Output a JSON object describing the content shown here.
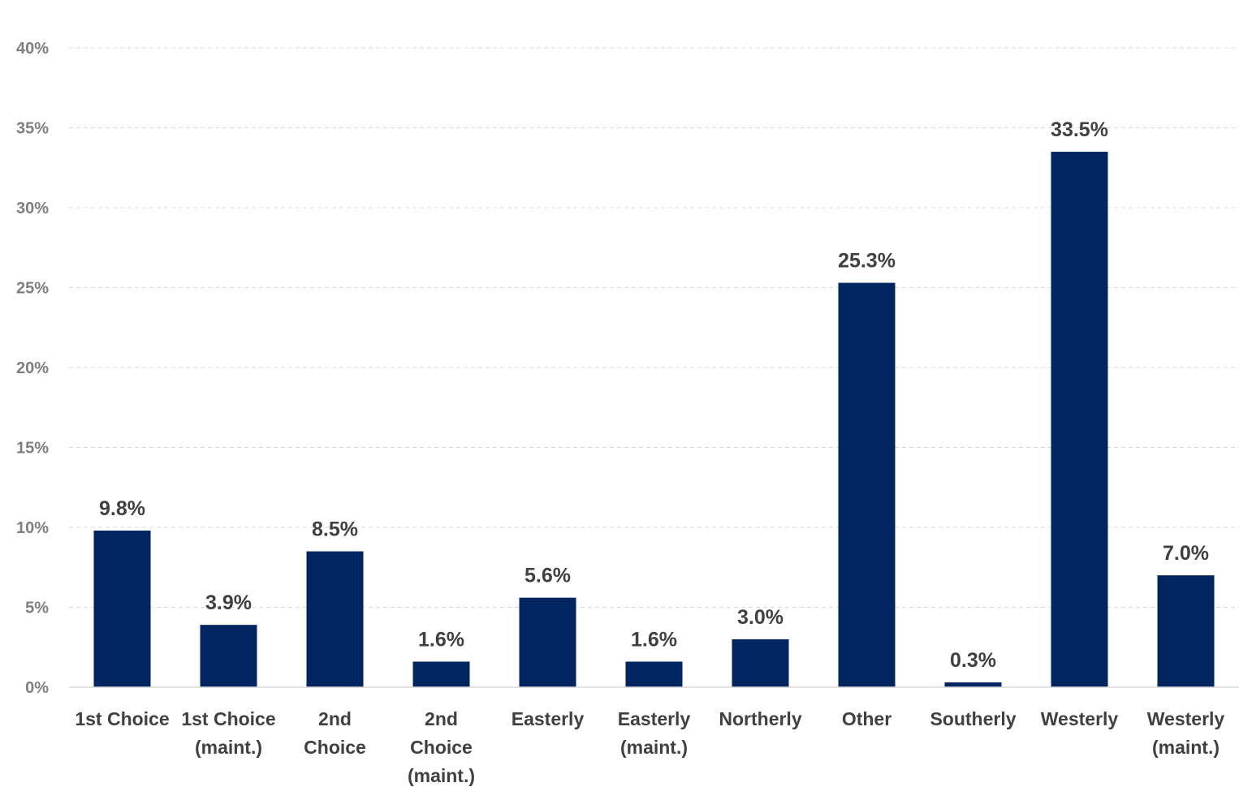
{
  "chart_data": {
    "type": "bar",
    "categories": [
      [
        "1st Choice"
      ],
      [
        "1st Choice",
        "(maint.)"
      ],
      [
        "2nd",
        "Choice"
      ],
      [
        "2nd",
        "Choice",
        "(maint.)"
      ],
      [
        "Easterly"
      ],
      [
        "Easterly",
        "(maint.)"
      ],
      [
        "Northerly"
      ],
      [
        "Other"
      ],
      [
        "Southerly"
      ],
      [
        "Westerly"
      ],
      [
        "Westerly",
        "(maint.)"
      ]
    ],
    "values": [
      9.8,
      3.9,
      8.5,
      1.6,
      5.6,
      1.6,
      3.0,
      25.3,
      0.3,
      33.5,
      7.0
    ],
    "value_labels": [
      "9.8%",
      "3.9%",
      "8.5%",
      "1.6%",
      "5.6%",
      "1.6%",
      "3.0%",
      "25.3%",
      "0.3%",
      "33.5%",
      "7.0%"
    ],
    "ylim": [
      0,
      40
    ],
    "yticks": [
      0,
      5,
      10,
      15,
      20,
      25,
      30,
      35,
      40
    ],
    "ytick_labels": [
      "0%",
      "5%",
      "10%",
      "15%",
      "20%",
      "25%",
      "30%",
      "35%",
      "40%"
    ],
    "grid": true,
    "bar_color": "#002561",
    "title": "",
    "xlabel": "",
    "ylabel": ""
  }
}
